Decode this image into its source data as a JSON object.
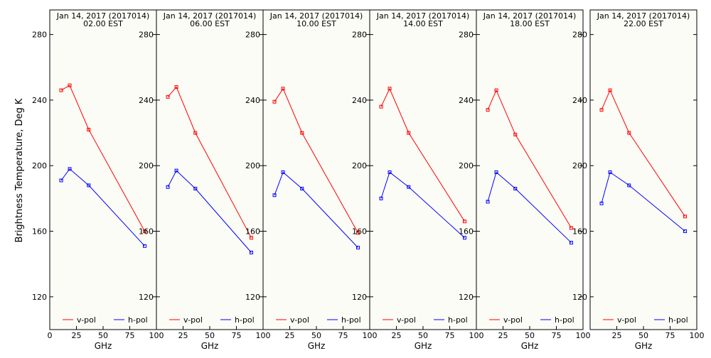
{
  "ylabel": "Brightness Temperature, Deg K",
  "xlabel": "GHz",
  "colors": {
    "v_pol": "#ff0000",
    "h_pol": "#0000ff",
    "axis": "#000000",
    "panel_bg": "#fcfcf6"
  },
  "chart_data": [
    {
      "type": "line",
      "title": "Jan 14, 2017 (2017014)",
      "subtitle": "02.00 EST",
      "x": [
        10.7,
        18.7,
        36.5,
        89.0
      ],
      "xlim": [
        0,
        100
      ],
      "xticks": [
        0,
        25,
        50,
        75,
        100
      ],
      "xtick_labels": [
        "0",
        "25",
        "50",
        "75",
        "100"
      ],
      "ylim": [
        100,
        295
      ],
      "yticks": [
        120,
        160,
        200,
        240,
        280
      ],
      "ytick_labels": [
        "120",
        "160",
        "200",
        "240",
        "280"
      ],
      "legend_position": "bottom",
      "series": [
        {
          "name": "v-pol",
          "values": [
            246,
            249,
            222,
            160
          ]
        },
        {
          "name": "h-pol",
          "values": [
            191,
            198,
            188,
            151
          ]
        }
      ]
    },
    {
      "type": "line",
      "title": "Jan 14, 2017 (2017014)",
      "subtitle": "06.00 EST",
      "x": [
        10.7,
        18.7,
        36.5,
        89.0
      ],
      "xlim": [
        0,
        100
      ],
      "xticks": [
        0,
        25,
        50,
        75,
        100
      ],
      "xtick_labels": [
        "",
        "25",
        "50",
        "75",
        "100"
      ],
      "ylim": [
        100,
        295
      ],
      "yticks": [
        120,
        160,
        200,
        240,
        280
      ],
      "ytick_labels": [
        "120",
        "160",
        "200",
        "240",
        "280"
      ],
      "legend_position": "bottom",
      "series": [
        {
          "name": "v-pol",
          "values": [
            242,
            248,
            220,
            156
          ]
        },
        {
          "name": "h-pol",
          "values": [
            187,
            197,
            186,
            147
          ]
        }
      ]
    },
    {
      "type": "line",
      "title": "Jan 14, 2017 (2017014)",
      "subtitle": "10.00 EST",
      "x": [
        10.7,
        18.7,
        36.5,
        89.0
      ],
      "xlim": [
        0,
        100
      ],
      "xticks": [
        0,
        25,
        50,
        75,
        100
      ],
      "xtick_labels": [
        "",
        "25",
        "50",
        "75",
        "100"
      ],
      "ylim": [
        100,
        295
      ],
      "yticks": [
        120,
        160,
        200,
        240,
        280
      ],
      "ytick_labels": [
        "120",
        "160",
        "200",
        "240",
        "280"
      ],
      "legend_position": "bottom",
      "series": [
        {
          "name": "v-pol",
          "values": [
            239,
            247,
            220,
            159
          ]
        },
        {
          "name": "h-pol",
          "values": [
            182,
            196,
            186,
            150
          ]
        }
      ]
    },
    {
      "type": "line",
      "title": "Jan 14, 2017 (2017014)",
      "subtitle": "14.00 EST",
      "x": [
        10.7,
        18.7,
        36.5,
        89.0
      ],
      "xlim": [
        0,
        100
      ],
      "xticks": [
        0,
        25,
        50,
        75,
        100
      ],
      "xtick_labels": [
        "",
        "25",
        "50",
        "75",
        "100"
      ],
      "ylim": [
        100,
        295
      ],
      "yticks": [
        120,
        160,
        200,
        240,
        280
      ],
      "ytick_labels": [
        "120",
        "160",
        "200",
        "240",
        "280"
      ],
      "legend_position": "bottom",
      "series": [
        {
          "name": "v-pol",
          "values": [
            236,
            247,
            220,
            166
          ]
        },
        {
          "name": "h-pol",
          "values": [
            180,
            196,
            187,
            156
          ]
        }
      ]
    },
    {
      "type": "line",
      "title": "Jan 14, 2017 (2017014)",
      "subtitle": "18.00 EST",
      "x": [
        10.7,
        18.7,
        36.5,
        89.0
      ],
      "xlim": [
        0,
        100
      ],
      "xticks": [
        0,
        25,
        50,
        75,
        100
      ],
      "xtick_labels": [
        "",
        "25",
        "50",
        "75",
        "100"
      ],
      "ylim": [
        100,
        295
      ],
      "yticks": [
        120,
        160,
        200,
        240,
        280
      ],
      "ytick_labels": [
        "120",
        "160",
        "200",
        "240",
        "280"
      ],
      "legend_position": "bottom",
      "series": [
        {
          "name": "v-pol",
          "values": [
            234,
            246,
            219,
            162
          ]
        },
        {
          "name": "h-pol",
          "values": [
            178,
            196,
            186,
            153
          ]
        }
      ]
    },
    {
      "type": "line",
      "title": "Jan 14, 2017 (2017014)",
      "subtitle": "22.00 EST",
      "x": [
        10.7,
        18.7,
        36.5,
        89.0
      ],
      "xlim": [
        0,
        100
      ],
      "xticks": [
        0,
        25,
        50,
        75,
        100
      ],
      "xtick_labels": [
        "",
        "25",
        "50",
        "75",
        "100"
      ],
      "ylim": [
        100,
        295
      ],
      "yticks": [
        120,
        160,
        200,
        240,
        280
      ],
      "ytick_labels": [
        "120",
        "160",
        "200",
        "240",
        "280"
      ],
      "legend_position": "bottom",
      "series": [
        {
          "name": "v-pol",
          "values": [
            234,
            246,
            220,
            169
          ]
        },
        {
          "name": "h-pol",
          "values": [
            177,
            196,
            188,
            160
          ]
        }
      ]
    }
  ]
}
